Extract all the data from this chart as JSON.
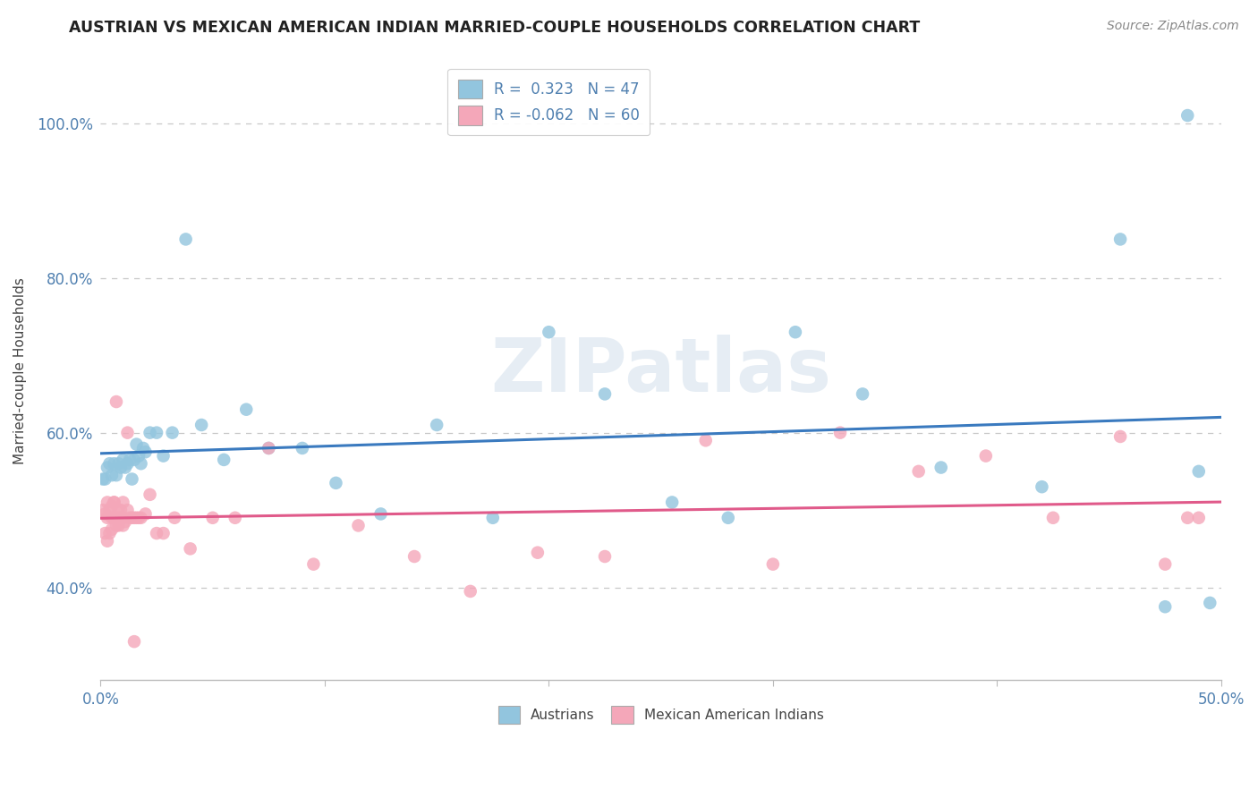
{
  "title": "AUSTRIAN VS MEXICAN AMERICAN INDIAN MARRIED-COUPLE HOUSEHOLDS CORRELATION CHART",
  "source": "Source: ZipAtlas.com",
  "ylabel": "Married-couple Households",
  "xlim": [
    0.0,
    0.5
  ],
  "ylim": [
    0.28,
    1.08
  ],
  "yticks": [
    0.4,
    0.6,
    0.8,
    1.0
  ],
  "ytick_labels": [
    "40.0%",
    "60.0%",
    "80.0%",
    "100.0%"
  ],
  "xticks": [
    0.0,
    0.1,
    0.2,
    0.3,
    0.4,
    0.5
  ],
  "xtick_labels": [
    "0.0%",
    "",
    "",
    "",
    "",
    "50.0%"
  ],
  "watermark": "ZIPatlas",
  "blue_color": "#92c5de",
  "pink_color": "#f4a7b9",
  "blue_line_color": "#3a7abf",
  "pink_line_color": "#e05a8a",
  "tick_color": "#5080b0",
  "grid_color": "#c8c8c8",
  "background_color": "#ffffff",
  "austrians_x": [
    0.001,
    0.002,
    0.003,
    0.004,
    0.005,
    0.006,
    0.007,
    0.008,
    0.009,
    0.01,
    0.011,
    0.012,
    0.013,
    0.014,
    0.015,
    0.016,
    0.017,
    0.018,
    0.019,
    0.02,
    0.022,
    0.025,
    0.028,
    0.032,
    0.038,
    0.045,
    0.055,
    0.065,
    0.075,
    0.09,
    0.105,
    0.125,
    0.15,
    0.175,
    0.2,
    0.225,
    0.255,
    0.28,
    0.31,
    0.34,
    0.375,
    0.42,
    0.455,
    0.475,
    0.485,
    0.49,
    0.495
  ],
  "austrians_y": [
    0.54,
    0.54,
    0.555,
    0.56,
    0.545,
    0.56,
    0.545,
    0.56,
    0.555,
    0.565,
    0.555,
    0.56,
    0.565,
    0.54,
    0.565,
    0.585,
    0.57,
    0.56,
    0.58,
    0.575,
    0.6,
    0.6,
    0.57,
    0.6,
    0.85,
    0.61,
    0.565,
    0.63,
    0.58,
    0.58,
    0.535,
    0.495,
    0.61,
    0.49,
    0.73,
    0.65,
    0.51,
    0.49,
    0.73,
    0.65,
    0.555,
    0.53,
    0.85,
    0.375,
    1.01,
    0.55,
    0.38
  ],
  "mexican_x": [
    0.001,
    0.002,
    0.003,
    0.003,
    0.004,
    0.005,
    0.005,
    0.006,
    0.006,
    0.007,
    0.007,
    0.008,
    0.008,
    0.009,
    0.009,
    0.01,
    0.01,
    0.011,
    0.012,
    0.013,
    0.014,
    0.015,
    0.016,
    0.017,
    0.018,
    0.02,
    0.022,
    0.025,
    0.028,
    0.033,
    0.04,
    0.05,
    0.06,
    0.075,
    0.095,
    0.115,
    0.14,
    0.165,
    0.195,
    0.225,
    0.27,
    0.3,
    0.33,
    0.365,
    0.395,
    0.425,
    0.455,
    0.475,
    0.485,
    0.49,
    0.002,
    0.003,
    0.004,
    0.005,
    0.006,
    0.007,
    0.008,
    0.01,
    0.012,
    0.015
  ],
  "mexican_y": [
    0.5,
    0.495,
    0.49,
    0.51,
    0.5,
    0.49,
    0.505,
    0.49,
    0.51,
    0.48,
    0.49,
    0.48,
    0.5,
    0.49,
    0.5,
    0.49,
    0.48,
    0.485,
    0.5,
    0.49,
    0.49,
    0.49,
    0.49,
    0.49,
    0.49,
    0.495,
    0.52,
    0.47,
    0.47,
    0.49,
    0.45,
    0.49,
    0.49,
    0.58,
    0.43,
    0.48,
    0.44,
    0.395,
    0.445,
    0.44,
    0.59,
    0.43,
    0.6,
    0.55,
    0.57,
    0.49,
    0.595,
    0.43,
    0.49,
    0.49,
    0.47,
    0.46,
    0.47,
    0.475,
    0.51,
    0.64,
    0.49,
    0.51,
    0.6,
    0.33
  ]
}
